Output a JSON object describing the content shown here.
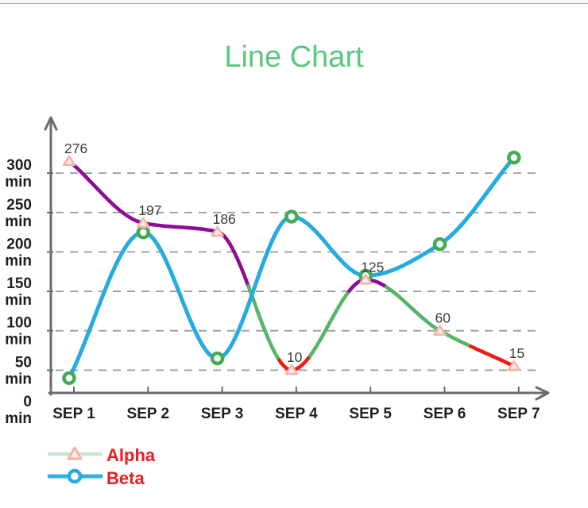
{
  "page": {
    "background": "#ffffff",
    "top_strip_color": "#f8f8f8",
    "top_strip_border": "#a9a9a9"
  },
  "title": {
    "text": "Line Chart",
    "color": "#5cc67e"
  },
  "chart_data": {
    "type": "line",
    "title": "Line Chart",
    "categories": [
      "SEP 1",
      "SEP 2",
      "SEP 3",
      "SEP 4",
      "SEP 5",
      "SEP 6",
      "SEP 7"
    ],
    "y_axis": {
      "unit": "min",
      "tick_values": [
        300,
        250,
        200,
        150,
        100,
        50,
        0
      ],
      "range_displayed": [
        0,
        300
      ],
      "gridlines": "dashed"
    },
    "series": [
      {
        "name": "Alpha",
        "values": [
          276,
          197,
          186,
          10,
          125,
          60,
          15
        ],
        "point_labels": [
          "276",
          "197",
          "186",
          "10",
          "125",
          "60",
          "15"
        ],
        "marker": "triangle",
        "marker_stroke": "#f3b3aa",
        "marker_fill": "#fcebe9",
        "line_style": "multicolor",
        "line_segments": [
          {
            "until": 2.42,
            "color": "#8c0d96"
          },
          {
            "until": 2.85,
            "color": "#57b566"
          },
          {
            "until": 3.25,
            "color": "#ed1c16"
          },
          {
            "until": 3.8,
            "color": "#57b566"
          },
          {
            "until": 4.29,
            "color": "#8c0d96"
          },
          {
            "until": 5.42,
            "color": "#57b566"
          },
          {
            "until": 6.0,
            "color": "#ed1c16"
          }
        ]
      },
      {
        "name": "Beta",
        "values": [
          40,
          225,
          65,
          245,
          170,
          210,
          320
        ],
        "point_labels": [],
        "marker": "circle",
        "marker_stroke": "#43ab55",
        "marker_fill": "#ffffff",
        "line_color": "#25aae1"
      }
    ],
    "legend": {
      "position": "bottom-left",
      "label_color": "#ea1b22",
      "entries": [
        {
          "label": "Alpha",
          "line_color": "#c9e7cf",
          "marker": "triangle",
          "marker_color": "#f3b3aa"
        },
        {
          "label": "Beta",
          "line_color": "#33b0e6",
          "marker": "circle",
          "marker_color": "#29abe2"
        }
      ]
    },
    "axis_color": "#6b6b6b",
    "gridline_color": "#9b9b9b",
    "tick_label_color": "#1f1f1f",
    "point_label_color": "#3a3a3a"
  }
}
